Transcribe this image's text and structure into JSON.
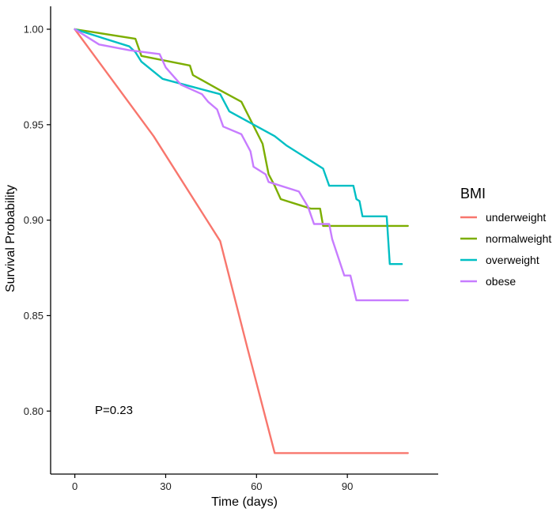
{
  "chart_data": {
    "type": "line",
    "subtype": "kaplan-meier step curve",
    "title": "",
    "xlabel": "Time (days)",
    "ylabel": "Survival Probability",
    "xlim": [
      -8,
      120
    ],
    "ylim": [
      0.767,
      1.012
    ],
    "x_ticks": [
      0,
      30,
      60,
      90
    ],
    "x_tick_labels": [
      "0",
      "30",
      "60",
      "90"
    ],
    "y_ticks": [
      0.8,
      0.85,
      0.9,
      0.95,
      1.0
    ],
    "y_tick_labels": [
      "0.80",
      "0.85",
      "0.90",
      "0.95",
      "1.00"
    ],
    "grid": false,
    "legend": {
      "title": "BMI",
      "position": "right"
    },
    "annotation": "P=0.23",
    "series": [
      {
        "name": "underweight",
        "color": "#F8766D",
        "points": [
          [
            0,
            1.0
          ],
          [
            26,
            0.944
          ],
          [
            48,
            0.889
          ],
          [
            57,
            0.833
          ],
          [
            66,
            0.778
          ],
          [
            110,
            0.778
          ]
        ]
      },
      {
        "name": "normalweight",
        "color": "#7CAE00",
        "points": [
          [
            0,
            1.0
          ],
          [
            20,
            0.995
          ],
          [
            22,
            0.986
          ],
          [
            38,
            0.981
          ],
          [
            39,
            0.976
          ],
          [
            48,
            0.968
          ],
          [
            55,
            0.962
          ],
          [
            62,
            0.94
          ],
          [
            64,
            0.924
          ],
          [
            66,
            0.918
          ],
          [
            68,
            0.911
          ],
          [
            78,
            0.906
          ],
          [
            81,
            0.906
          ],
          [
            82,
            0.897
          ],
          [
            110,
            0.897
          ]
        ]
      },
      {
        "name": "overweight",
        "color": "#00BFC4",
        "points": [
          [
            0,
            1.0
          ],
          [
            18,
            0.991
          ],
          [
            20,
            0.988
          ],
          [
            22,
            0.983
          ],
          [
            29,
            0.974
          ],
          [
            48,
            0.966
          ],
          [
            51,
            0.957
          ],
          [
            66,
            0.944
          ],
          [
            70,
            0.939
          ],
          [
            77,
            0.932
          ],
          [
            82,
            0.927
          ],
          [
            84,
            0.918
          ],
          [
            92,
            0.918
          ],
          [
            93,
            0.911
          ],
          [
            94,
            0.91
          ],
          [
            95,
            0.902
          ],
          [
            103,
            0.902
          ],
          [
            104,
            0.877
          ],
          [
            108,
            0.877
          ]
        ]
      },
      {
        "name": "obese",
        "color": "#C77CFF",
        "points": [
          [
            0,
            1.0
          ],
          [
            8,
            0.992
          ],
          [
            18,
            0.989
          ],
          [
            28,
            0.987
          ],
          [
            30,
            0.98
          ],
          [
            35,
            0.971
          ],
          [
            42,
            0.966
          ],
          [
            44,
            0.962
          ],
          [
            47,
            0.958
          ],
          [
            49,
            0.949
          ],
          [
            55,
            0.945
          ],
          [
            58,
            0.936
          ],
          [
            59,
            0.928
          ],
          [
            63,
            0.924
          ],
          [
            64,
            0.92
          ],
          [
            74,
            0.915
          ],
          [
            77,
            0.907
          ],
          [
            79,
            0.898
          ],
          [
            84,
            0.898
          ],
          [
            85,
            0.89
          ],
          [
            89,
            0.871
          ],
          [
            91,
            0.871
          ],
          [
            93,
            0.858
          ],
          [
            110,
            0.858
          ]
        ]
      }
    ]
  }
}
